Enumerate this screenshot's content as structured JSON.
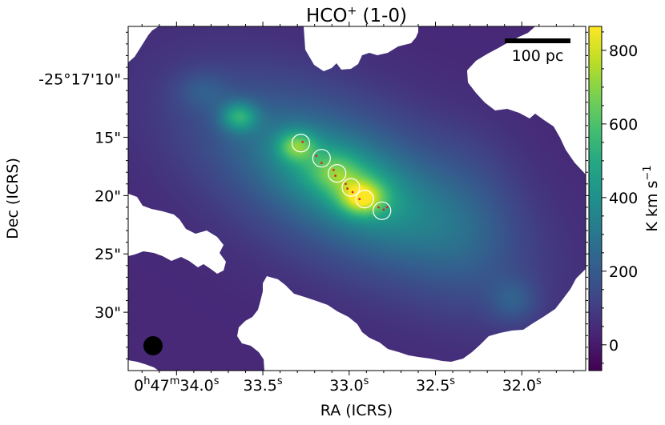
{
  "chart_data": {
    "type": "heatmap",
    "title": "HCO",
    "title_superscript": "+",
    "title_suffix": " (1-0)",
    "xlabel": "RA (ICRS)",
    "ylabel": "Dec (ICRS)",
    "colorbar_label": "K km s",
    "colorbar_label_superscript": "−1",
    "colormap": "viridis",
    "clim": [
      -70,
      865
    ],
    "colorbar_ticks": [
      {
        "value": 0,
        "label": "0"
      },
      {
        "value": 200,
        "label": "200"
      },
      {
        "value": 400,
        "label": "400"
      },
      {
        "value": 600,
        "label": "600"
      },
      {
        "value": 800,
        "label": "800"
      }
    ],
    "xlim_sec": [
      34.28,
      31.63
    ],
    "ylim_arcsec": [
      35.0,
      5.5
    ],
    "x_ticks": [
      {
        "sec": 34.0,
        "prefix": "0",
        "h": "h",
        "mid": "47",
        "m": "m",
        "main": "34.0",
        "s": "s"
      },
      {
        "sec": 33.5,
        "main": "33.5",
        "s": "s"
      },
      {
        "sec": 33.0,
        "main": "33.0",
        "s": "s"
      },
      {
        "sec": 32.5,
        "main": "32.5",
        "s": "s"
      },
      {
        "sec": 32.0,
        "main": "32.0",
        "s": "s"
      }
    ],
    "y_ticks": [
      {
        "arcsec": 10,
        "label": "-25°17'10\""
      },
      {
        "arcsec": 15,
        "label": "15\""
      },
      {
        "arcsec": 20,
        "label": "20\""
      },
      {
        "arcsec": 25,
        "label": "25\""
      },
      {
        "arcsec": 30,
        "label": "30\""
      }
    ],
    "scalebar_label": "100 pc",
    "beam": {
      "position": "bottom-left",
      "color": "#000000"
    },
    "circles": [
      {
        "ra_sec": 33.28,
        "dec_arcsec": 15.5
      },
      {
        "ra_sec": 33.16,
        "dec_arcsec": 16.8
      },
      {
        "ra_sec": 33.07,
        "dec_arcsec": 18.1
      },
      {
        "ra_sec": 32.99,
        "dec_arcsec": 19.3
      },
      {
        "ra_sec": 32.91,
        "dec_arcsec": 20.3
      },
      {
        "ra_sec": 32.81,
        "dec_arcsec": 21.3
      }
    ],
    "sources": [
      {
        "ra_sec": 33.27,
        "dec_arcsec": 15.4
      },
      {
        "ra_sec": 33.19,
        "dec_arcsec": 16.6
      },
      {
        "ra_sec": 33.16,
        "dec_arcsec": 17.2
      },
      {
        "ra_sec": 33.09,
        "dec_arcsec": 17.8
      },
      {
        "ra_sec": 33.08,
        "dec_arcsec": 18.3
      },
      {
        "ra_sec": 33.02,
        "dec_arcsec": 19.0
      },
      {
        "ra_sec": 33.01,
        "dec_arcsec": 19.4
      },
      {
        "ra_sec": 32.98,
        "dec_arcsec": 19.7
      },
      {
        "ra_sec": 32.94,
        "dec_arcsec": 20.3
      },
      {
        "ra_sec": 32.83,
        "dec_arcsec": 21.0
      },
      {
        "ra_sec": 32.8,
        "dec_arcsec": 21.2
      },
      {
        "ra_sec": 32.78,
        "dec_arcsec": 21.0
      }
    ],
    "emission_components": [
      {
        "ra_sec": 33.0,
        "dec_arcsec": 19.0,
        "peak": 250,
        "sx": 10.0,
        "sy": 4.8,
        "angle_deg": 27
      },
      {
        "ra_sec": 33.0,
        "dec_arcsec": 19.0,
        "peak": 170,
        "sx": 6.5,
        "sy": 2.6,
        "angle_deg": 27
      },
      {
        "ra_sec": 33.05,
        "dec_arcsec": 18.4,
        "peak": 170,
        "sx": 3.0,
        "sy": 1.5,
        "angle_deg": 27
      },
      {
        "ra_sec": 33.31,
        "dec_arcsec": 15.7,
        "peak": 310,
        "sx": 1.1,
        "sy": 0.9,
        "angle_deg": 0
      },
      {
        "ra_sec": 32.93,
        "dec_arcsec": 20.2,
        "peak": 390,
        "sx": 1.3,
        "sy": 1.0,
        "angle_deg": 0
      },
      {
        "ra_sec": 33.64,
        "dec_arcsec": 13.2,
        "peak": 330,
        "sx": 1.1,
        "sy": 0.9,
        "angle_deg": 0
      },
      {
        "ra_sec": 33.08,
        "dec_arcsec": 18.0,
        "peak": 100,
        "sx": 1.3,
        "sy": 1.0,
        "angle_deg": 0
      },
      {
        "ra_sec": 33.85,
        "dec_arcsec": 11.0,
        "peak": 90,
        "sx": 1.6,
        "sy": 1.2,
        "angle_deg": 0
      },
      {
        "ra_sec": 32.05,
        "dec_arcsec": 29.0,
        "peak": 120,
        "sx": 1.5,
        "sy": 1.4,
        "angle_deg": 0
      },
      {
        "ra_sec": 32.3,
        "dec_arcsec": 22.0,
        "peak": 60,
        "sx": 3.0,
        "sy": 5.0,
        "angle_deg": 0
      }
    ],
    "background_level": 40
  }
}
